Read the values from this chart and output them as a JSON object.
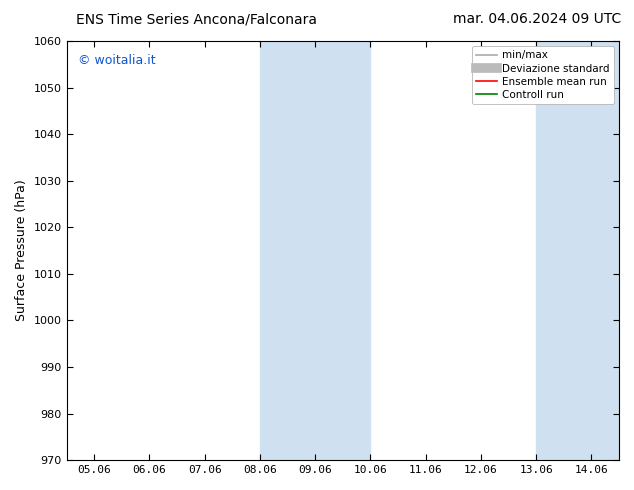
{
  "title_left": "ENS Time Series Ancona/Falconara",
  "title_right": "mar. 04.06.2024 09 UTC",
  "ylabel": "Surface Pressure (hPa)",
  "ylim": [
    970,
    1060
  ],
  "yticks": [
    970,
    980,
    990,
    1000,
    1010,
    1020,
    1030,
    1040,
    1050,
    1060
  ],
  "xlabels": [
    "05.06",
    "06.06",
    "07.06",
    "08.06",
    "09.06",
    "10.06",
    "11.06",
    "12.06",
    "13.06",
    "14.06"
  ],
  "xtick_positions": [
    0,
    1,
    2,
    3,
    4,
    5,
    6,
    7,
    8,
    9
  ],
  "shade_bands": [
    {
      "xmin": 3,
      "xmax": 5
    },
    {
      "xmin": 8,
      "xmax": 9.5
    }
  ],
  "shade_color": "#cfe0f0",
  "watermark": "© woitalia.it",
  "watermark_color": "#1155cc",
  "legend_items": [
    {
      "label": "min/max",
      "color": "#aaaaaa",
      "lw": 1.2
    },
    {
      "label": "Deviazione standard",
      "color": "#bbbbbb",
      "lw": 7
    },
    {
      "label": "Ensemble mean run",
      "color": "red",
      "lw": 1.2
    },
    {
      "label": "Controll run",
      "color": "green",
      "lw": 1.2
    }
  ],
  "background_color": "#ffffff",
  "title_fontsize": 10,
  "ylabel_fontsize": 9,
  "tick_fontsize": 8,
  "legend_fontsize": 7.5,
  "watermark_fontsize": 9
}
